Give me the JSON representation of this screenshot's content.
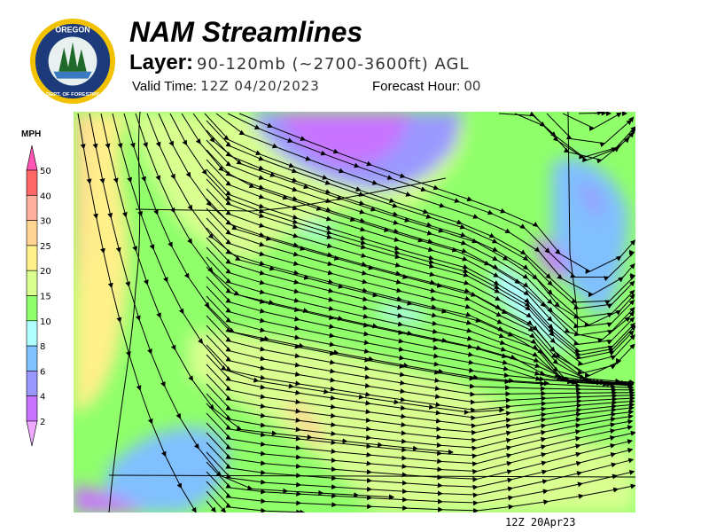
{
  "header": {
    "title": "NAM Streamlines",
    "layer_label": "Layer:",
    "layer_value": "90-120mb (~2700-3600ft) AGL",
    "valid_label": "Valid Time:",
    "valid_value": "12Z 04/20/2023",
    "forecast_label": "Forecast Hour:",
    "forecast_value": "00"
  },
  "logo": {
    "top_text": "OREGON",
    "ring_text": "DEPARTMENT OF FORESTRY"
  },
  "legend": {
    "unit": "MPH",
    "ticks": [
      "50",
      "40",
      "30",
      "25",
      "20",
      "15",
      "10",
      "8",
      "6",
      "4",
      "2"
    ],
    "colors": {
      "above_50": "#ff55b5",
      "40-50": "#ff6666",
      "30-40": "#ffb0a0",
      "25-30": "#ffd494",
      "20-25": "#fff08a",
      "15-20": "#d8ff90",
      "10-15": "#8fff6a",
      "8-10": "#b0ffff",
      "6-8": "#80c0ff",
      "4-6": "#9a98ff",
      "2-4": "#c873ff",
      "below_2": "#eea8ff"
    }
  },
  "footer": {
    "timestamp": "12Z 20Apr23"
  }
}
